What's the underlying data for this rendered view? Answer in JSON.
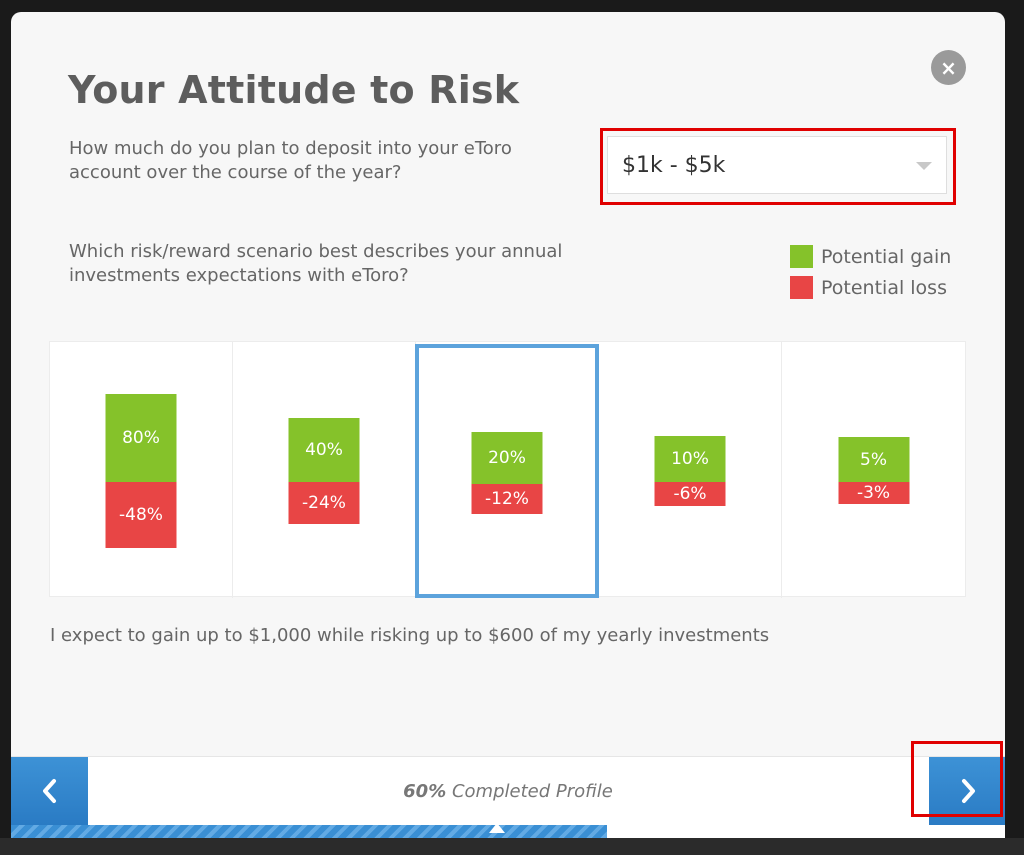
{
  "modal": {
    "title": "Your Attitude to Risk",
    "close_label": "×"
  },
  "deposit": {
    "question": "How much do you plan to deposit into your eToro account over the course of the year?",
    "selected": "$1k - $5k"
  },
  "scenario": {
    "question": "Which risk/reward scenario best describes your annual investments expectations with eToro?"
  },
  "legend": {
    "gain_label": "Potential gain",
    "loss_label": "Potential loss",
    "gain_color": "#85c22a",
    "loss_color": "#e84545"
  },
  "options": [
    {
      "gain": "80%",
      "loss": "-48%",
      "gain_value": 80,
      "loss_value": 48,
      "selected": false
    },
    {
      "gain": "40%",
      "loss": "-24%",
      "gain_value": 40,
      "loss_value": 24,
      "selected": false
    },
    {
      "gain": "20%",
      "loss": "-12%",
      "gain_value": 20,
      "loss_value": 12,
      "selected": true
    },
    {
      "gain": "10%",
      "loss": "-6%",
      "gain_value": 10,
      "loss_value": 6,
      "selected": false
    },
    {
      "gain": "5%",
      "loss": "-3%",
      "gain_value": 5,
      "loss_value": 3,
      "selected": false
    }
  ],
  "summary": "I expect to gain up to $1,000 while risking up to $600 of my yearly investments",
  "footer": {
    "prev_icon": "chevron-left-icon",
    "next_icon": "chevron-right-icon",
    "progress_percent_label": "60%",
    "progress_text": "Completed Profile",
    "progress_fraction": 0.6
  }
}
